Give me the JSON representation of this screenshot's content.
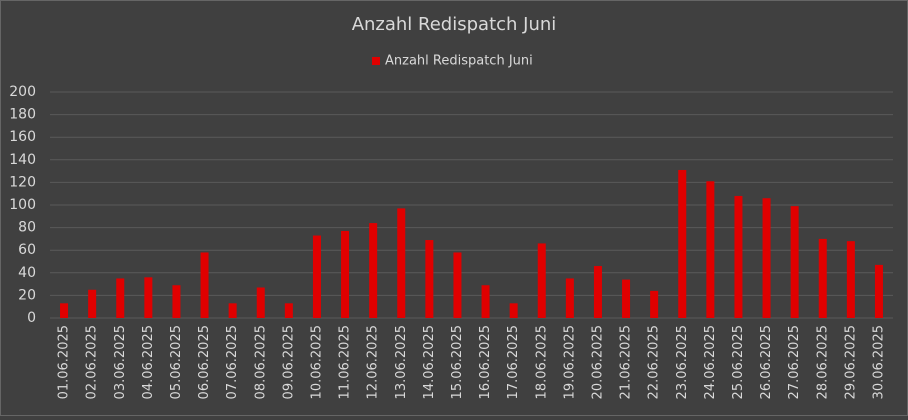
{
  "chart_data": {
    "type": "bar",
    "title": "Anzahl  Redispatch Juni",
    "categories": [
      "01.06.2025",
      "02.06.2025",
      "03.06.2025",
      "04.06.2025",
      "05.06.2025",
      "06.06.2025",
      "07.06.2025",
      "08.06.2025",
      "09.06.2025",
      "10.06.2025",
      "11.06.2025",
      "12.06.2025",
      "13.06.2025",
      "14.06.2025",
      "15.06.2025",
      "16.06.2025",
      "17.06.2025",
      "18.06.2025",
      "19.06.2025",
      "20.06.2025",
      "21.06.2025",
      "22.06.2025",
      "23.06.2025",
      "24.06.2025",
      "25.06.2025",
      "26.06.2025",
      "27.06.2025",
      "28.06.2025",
      "29.06.2025",
      "30.06.2025"
    ],
    "series": [
      {
        "name": "Anzahl Redispatch Juni",
        "color": "#e00000",
        "values": [
          13,
          25,
          35,
          36,
          29,
          58,
          13,
          27,
          13,
          73,
          77,
          84,
          97,
          69,
          58,
          29,
          13,
          66,
          35,
          46,
          34,
          24,
          131,
          121,
          108,
          106,
          99,
          70,
          68,
          47
        ]
      }
    ],
    "ylim": [
      0,
      200
    ],
    "yticks": [
      0,
      20,
      40,
      60,
      80,
      100,
      120,
      140,
      160,
      180,
      200
    ],
    "grid": true,
    "legend": "top"
  }
}
